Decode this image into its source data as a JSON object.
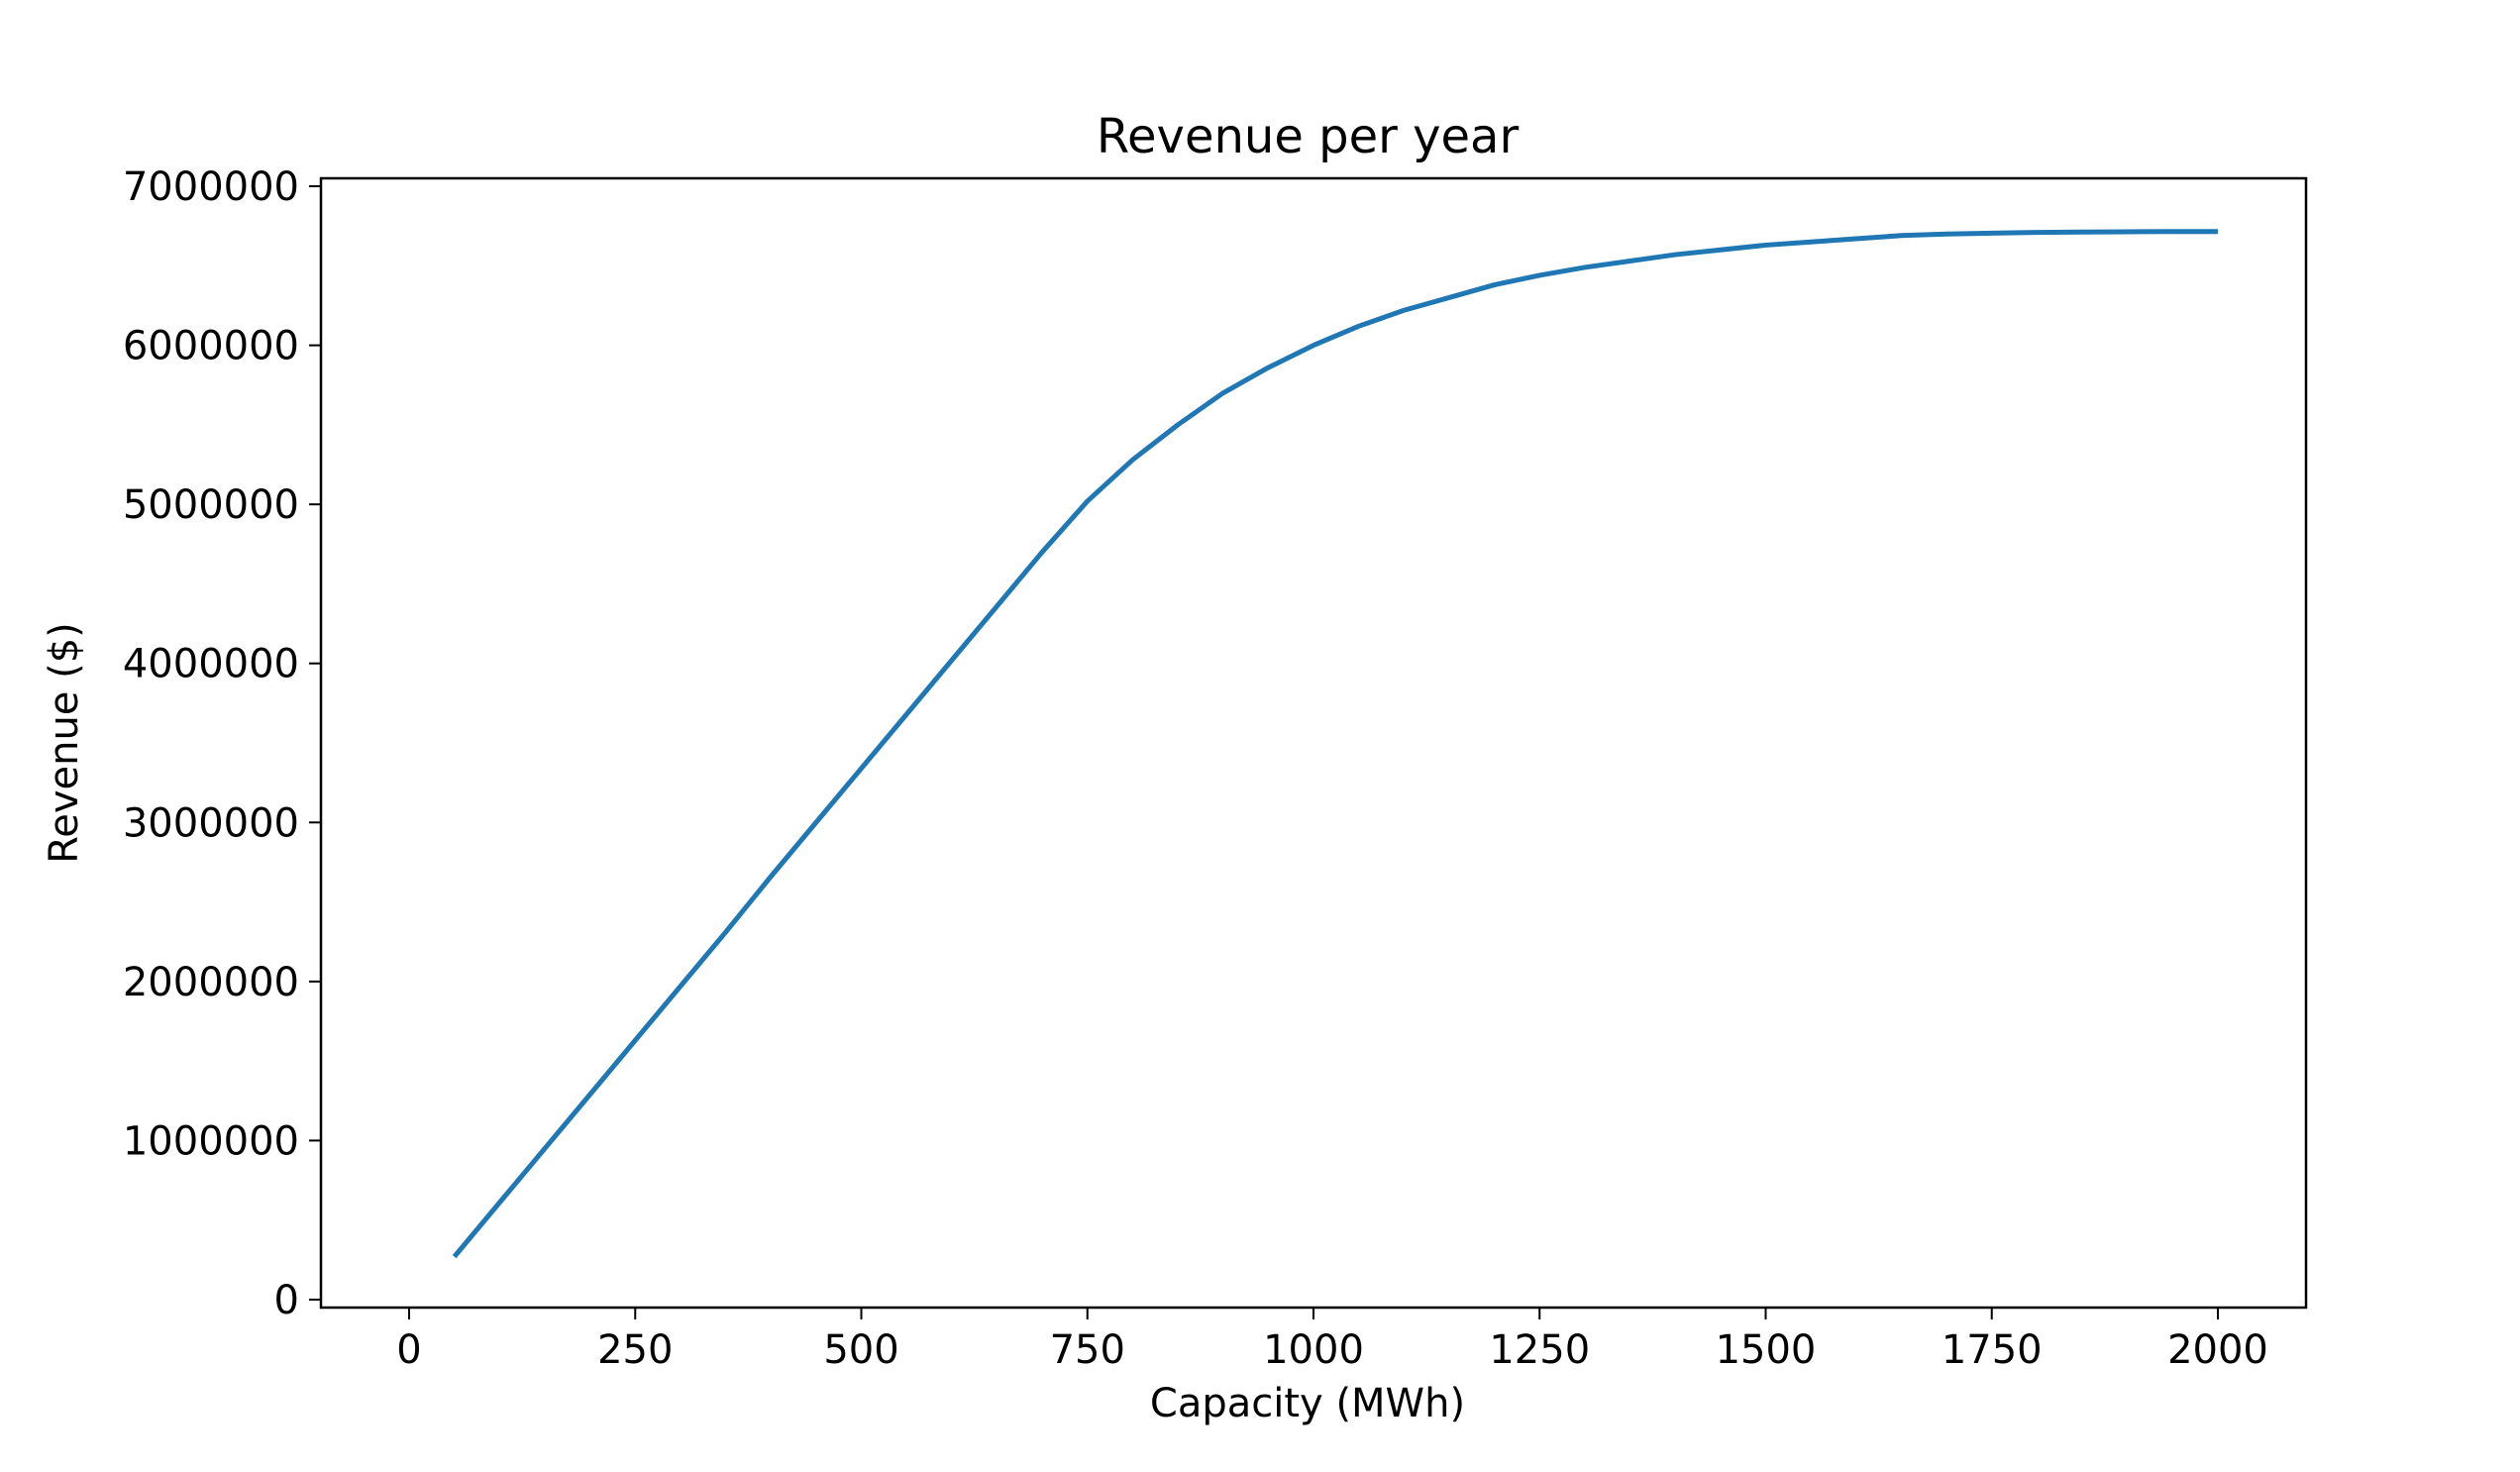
{
  "chart_data": {
    "type": "line",
    "title": "Revenue per year",
    "xlabel": "Capacity (MWh)",
    "ylabel": "Revenue ($)",
    "xlim": [
      -97.5,
      2097.5
    ],
    "ylim": [
      -50000,
      7050000
    ],
    "x_ticks": [
      0,
      250,
      500,
      750,
      1000,
      1250,
      1500,
      1750,
      2000
    ],
    "y_ticks": [
      0,
      1000000,
      2000000,
      3000000,
      4000000,
      5000000,
      6000000,
      7000000
    ],
    "grid": false,
    "legend": false,
    "series": [
      {
        "color": "#1f77b4",
        "x": [
          50,
          100,
          150,
          200,
          250,
          300,
          350,
          400,
          450,
          500,
          550,
          600,
          650,
          700,
          750,
          800,
          850,
          900,
          950,
          1000,
          1050,
          1100,
          1150,
          1200,
          1250,
          1300,
          1350,
          1400,
          1450,
          1500,
          1550,
          1600,
          1650,
          1700,
          1750,
          1800,
          1850,
          1900,
          1950,
          2000
        ],
        "y": [
          270000,
          610000,
          950000,
          1290000,
          1630000,
          1970000,
          2310000,
          2660000,
          3000000,
          3340000,
          3680000,
          4020000,
          4360000,
          4700000,
          5020000,
          5280000,
          5500000,
          5700000,
          5860000,
          6000000,
          6120000,
          6220000,
          6300000,
          6380000,
          6440000,
          6490000,
          6530000,
          6570000,
          6600000,
          6630000,
          6650000,
          6670000,
          6690000,
          6700000,
          6705000,
          6710000,
          6712000,
          6714000,
          6715000,
          6715000
        ]
      }
    ]
  }
}
